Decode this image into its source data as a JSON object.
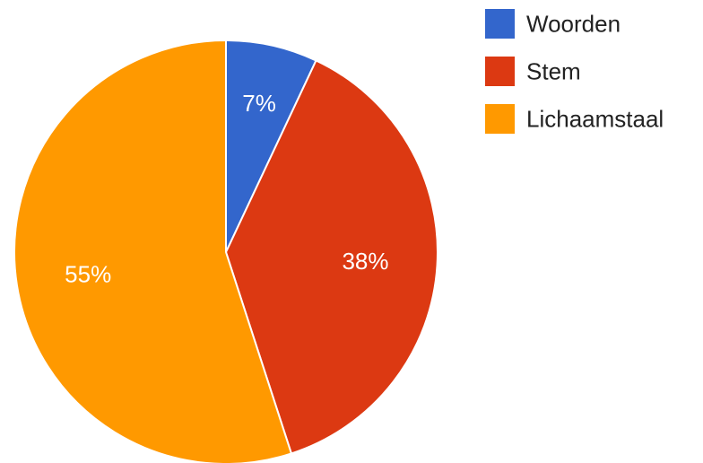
{
  "chart_data": {
    "type": "pie",
    "categories": [
      "Woorden",
      "Stem",
      "Lichaamstaal"
    ],
    "values": [
      7,
      38,
      55
    ],
    "value_labels": [
      "7%",
      "38%",
      "55%"
    ],
    "colors": [
      "#3366cc",
      "#dc3912",
      "#ff9900"
    ],
    "start_angle_deg": 0,
    "direction": "clockwise",
    "legend_position": "right"
  }
}
